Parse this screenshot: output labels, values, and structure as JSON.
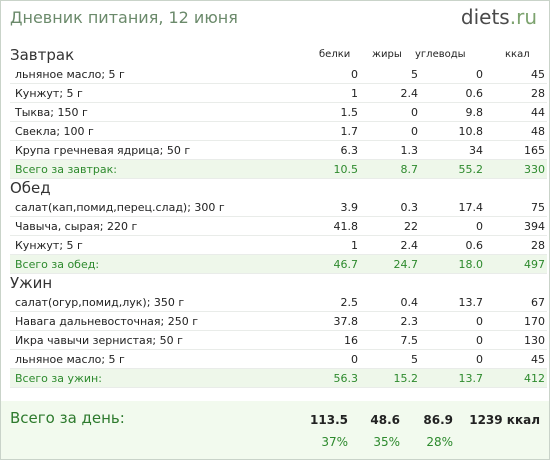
{
  "header": {
    "title": "Дневник питания, 12 июня",
    "logo_brand": "diets",
    "logo_tld": ".ru"
  },
  "columns": {
    "protein": "белки",
    "fat": "жиры",
    "carbs": "углеводы",
    "kcal": "ккал"
  },
  "meals": [
    {
      "title": "Завтрак",
      "items": [
        {
          "name": "льняное масло; 5 г",
          "protein": "0",
          "fat": "5",
          "carbs": "0",
          "kcal": "45"
        },
        {
          "name": "Кунжут; 5 г",
          "protein": "1",
          "fat": "2.4",
          "carbs": "0.6",
          "kcal": "28"
        },
        {
          "name": "Тыква; 150 г",
          "protein": "1.5",
          "fat": "0",
          "carbs": "9.8",
          "kcal": "44"
        },
        {
          "name": "Свекла; 100 г",
          "protein": "1.7",
          "fat": "0",
          "carbs": "10.8",
          "kcal": "48"
        },
        {
          "name": "Крупа гречневая ядрица; 50 г",
          "protein": "6.3",
          "fat": "1.3",
          "carbs": "34",
          "kcal": "165"
        }
      ],
      "total": {
        "label": "Всего за завтрак:",
        "protein": "10.5",
        "fat": "8.7",
        "carbs": "55.2",
        "kcal": "330"
      }
    },
    {
      "title": "Обед",
      "items": [
        {
          "name": "салат(кап,помид,перец.слад); 300 г",
          "protein": "3.9",
          "fat": "0.3",
          "carbs": "17.4",
          "kcal": "75"
        },
        {
          "name": "Чавыча, сырая; 220 г",
          "protein": "41.8",
          "fat": "22",
          "carbs": "0",
          "kcal": "394"
        },
        {
          "name": "Кунжут; 5 г",
          "protein": "1",
          "fat": "2.4",
          "carbs": "0.6",
          "kcal": "28"
        }
      ],
      "total": {
        "label": "Всего за обед:",
        "protein": "46.7",
        "fat": "24.7",
        "carbs": "18.0",
        "kcal": "497"
      }
    },
    {
      "title": "Ужин",
      "items": [
        {
          "name": "салат(огур,помид,лук); 350 г",
          "protein": "2.5",
          "fat": "0.4",
          "carbs": "13.7",
          "kcal": "67"
        },
        {
          "name": "Навага дальневосточная; 250 г",
          "protein": "37.8",
          "fat": "2.3",
          "carbs": "0",
          "kcal": "170"
        },
        {
          "name": "Икра чавычи зернистая; 50 г",
          "protein": "16",
          "fat": "7.5",
          "carbs": "0",
          "kcal": "130"
        },
        {
          "name": "льняное масло; 5 г",
          "protein": "0",
          "fat": "5",
          "carbs": "0",
          "kcal": "45"
        }
      ],
      "total": {
        "label": "Всего за ужин:",
        "protein": "56.3",
        "fat": "15.2",
        "carbs": "13.7",
        "kcal": "412"
      }
    }
  ],
  "day": {
    "label": "Всего за день:",
    "protein": "113.5",
    "fat": "48.6",
    "carbs": "86.9",
    "kcal": "1239 ккал",
    "protein_pct": "37%",
    "fat_pct": "35%",
    "carbs_pct": "28%"
  }
}
